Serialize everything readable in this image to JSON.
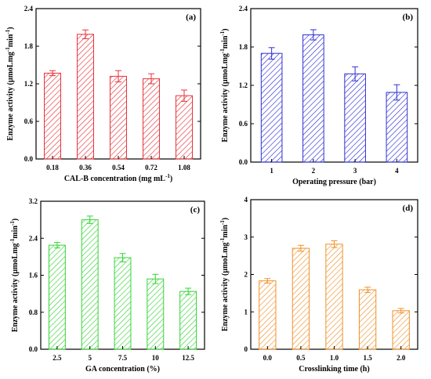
{
  "chart_data": [
    {
      "type": "bar",
      "panel_label": "(a)",
      "color": "#e8333a",
      "categories": [
        "0.18",
        "0.36",
        "0.54",
        "0.72",
        "1.08"
      ],
      "values": [
        1.37,
        1.99,
        1.32,
        1.28,
        1.01
      ],
      "errors": [
        0.04,
        0.07,
        0.09,
        0.08,
        0.09
      ],
      "xlabel": "CAL-B concentration (mg mL",
      "xlabel_sup": "-1",
      "xlabel_end": ")",
      "ylabel": "Enzyme activity (µmoLmg",
      "ylabel_sup1": "-1",
      "ylabel_mid": "min",
      "ylabel_sup2": "-1",
      "ylabel_end": ")",
      "ylim": [
        0,
        2.4
      ],
      "yticks": [
        "0.0",
        "0.6",
        "1.2",
        "1.8",
        "2.4"
      ],
      "grid": false,
      "hatch": "diagonal"
    },
    {
      "type": "bar",
      "panel_label": "(b)",
      "color": "#2f2fd6",
      "categories": [
        "1",
        "2",
        "3",
        "4"
      ],
      "values": [
        1.7,
        1.99,
        1.38,
        1.09
      ],
      "errors": [
        0.09,
        0.08,
        0.11,
        0.12
      ],
      "xlabel": "Operating pressure (bar)",
      "ylabel": "Enzyme activity (µmoLmg",
      "ylabel_sup1": "-1",
      "ylabel_mid": "min",
      "ylabel_sup2": "-1",
      "ylabel_end": ")",
      "ylim": [
        0,
        2.4
      ],
      "yticks": [
        "0.0",
        "0.6",
        "1.2",
        "1.8",
        "2.4"
      ],
      "grid": false,
      "hatch": "diagonal"
    },
    {
      "type": "bar",
      "panel_label": "(c)",
      "color": "#35d435",
      "categories": [
        "2.5",
        "5",
        "7.5",
        "10",
        "12.5"
      ],
      "values": [
        2.25,
        2.8,
        1.98,
        1.52,
        1.25
      ],
      "errors": [
        0.06,
        0.08,
        0.09,
        0.1,
        0.07
      ],
      "xlabel": "GA concentration (%)",
      "ylabel": "Enzyme activity (µmoLmg",
      "ylabel_sup1": "-1",
      "ylabel_mid": "min",
      "ylabel_sup2": "-1",
      "ylabel_end": ")",
      "ylim": [
        0,
        3.2
      ],
      "yticks": [
        "0.0",
        "0.8",
        "1.6",
        "2.4",
        "3.2"
      ],
      "grid": false,
      "hatch": "diagonal"
    },
    {
      "type": "bar",
      "panel_label": "(d)",
      "color": "#f0912a",
      "categories": [
        "0.0",
        "0.5",
        "1.0",
        "1.5",
        "2.0"
      ],
      "values": [
        1.83,
        2.7,
        2.81,
        1.59,
        1.03
      ],
      "errors": [
        0.06,
        0.08,
        0.09,
        0.07,
        0.06
      ],
      "xlabel": "Crosslinking time (h)",
      "ylabel": "Enzyme activity (µmoLmg",
      "ylabel_sup1": "-1",
      "ylabel_mid": "min",
      "ylabel_sup2": "-1",
      "ylabel_end": ")",
      "ylim": [
        0,
        4
      ],
      "yticks": [
        "0",
        "1",
        "2",
        "3",
        "4"
      ],
      "grid": false,
      "hatch": "diagonal"
    }
  ]
}
